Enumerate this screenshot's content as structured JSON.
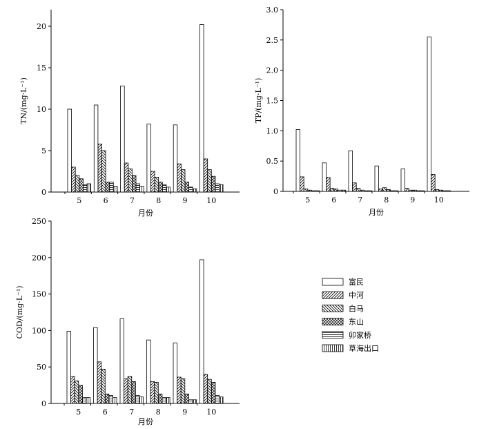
{
  "chart_data": [
    {
      "type": "bar",
      "categories": [
        "5",
        "6",
        "7",
        "8",
        "9",
        "10"
      ],
      "xlabel": "月份",
      "ylabel": "TN/(mg·L⁻¹)",
      "ylim": [
        0,
        22
      ],
      "yticks": [
        "0",
        "5",
        "10",
        "15",
        "20"
      ],
      "series": [
        {
          "name": "富民",
          "values": [
            10.0,
            10.5,
            12.8,
            8.2,
            8.1,
            20.2
          ]
        },
        {
          "name": "中河",
          "values": [
            3.0,
            5.8,
            3.5,
            2.5,
            3.4,
            4.0
          ]
        },
        {
          "name": "白马",
          "values": [
            2.0,
            5.0,
            2.8,
            1.8,
            2.7,
            2.7
          ]
        },
        {
          "name": "东山",
          "values": [
            1.6,
            1.2,
            2.0,
            1.2,
            1.2,
            1.9
          ]
        },
        {
          "name": "卯家桥",
          "values": [
            0.9,
            1.2,
            1.0,
            0.9,
            0.6,
            1.0
          ]
        },
        {
          "name": "草海出口",
          "values": [
            1.0,
            0.7,
            0.7,
            0.6,
            0.4,
            0.9
          ]
        }
      ]
    },
    {
      "type": "bar",
      "categories": [
        "5",
        "6",
        "7",
        "8",
        "9",
        "10"
      ],
      "xlabel": "月份",
      "ylabel": "TP/(mg·L⁻¹)",
      "ylim": [
        0,
        3.0
      ],
      "yticks": [
        "0",
        "0.5",
        "1.0",
        "1.5",
        "2.0",
        "2.5",
        "3.0"
      ],
      "series": [
        {
          "name": "富民",
          "values": [
            1.02,
            0.47,
            0.67,
            0.42,
            0.37,
            2.55
          ]
        },
        {
          "name": "中河",
          "values": [
            0.24,
            0.23,
            0.14,
            0.04,
            0.05,
            0.28
          ]
        },
        {
          "name": "白马",
          "values": [
            0.04,
            0.05,
            0.05,
            0.06,
            0.02,
            0.03
          ]
        },
        {
          "name": "东山",
          "values": [
            0.02,
            0.04,
            0.02,
            0.03,
            0.02,
            0.02
          ]
        },
        {
          "name": "卯家桥",
          "values": [
            0.01,
            0.02,
            0.01,
            0.01,
            0.01,
            0.01
          ]
        },
        {
          "name": "草海出口",
          "values": [
            0.01,
            0.02,
            0.01,
            0.01,
            0.01,
            0.01
          ]
        }
      ]
    },
    {
      "type": "bar",
      "categories": [
        "5",
        "6",
        "7",
        "8",
        "9",
        "10"
      ],
      "xlabel": "月份",
      "ylabel": "COD/(mg·L⁻¹)",
      "ylim": [
        0,
        250
      ],
      "yticks": [
        "0",
        "50",
        "100",
        "150",
        "200",
        "250"
      ],
      "series": [
        {
          "name": "富民",
          "values": [
            99,
            104,
            116,
            87,
            83,
            197
          ]
        },
        {
          "name": "中河",
          "values": [
            37,
            57,
            34,
            30,
            36,
            40
          ]
        },
        {
          "name": "白马",
          "values": [
            31,
            47,
            37,
            29,
            34,
            33
          ]
        },
        {
          "name": "东山",
          "values": [
            25,
            13,
            30,
            13,
            13,
            29
          ]
        },
        {
          "name": "卯家桥",
          "values": [
            8,
            11,
            11,
            8,
            5,
            11
          ]
        },
        {
          "name": "草海出口",
          "values": [
            8,
            8,
            9,
            8,
            5,
            9
          ]
        }
      ]
    }
  ],
  "legend": {
    "placement": "right",
    "items": [
      "富民",
      "中河",
      "白马",
      "东山",
      "卯家桥",
      "草海出口"
    ]
  }
}
